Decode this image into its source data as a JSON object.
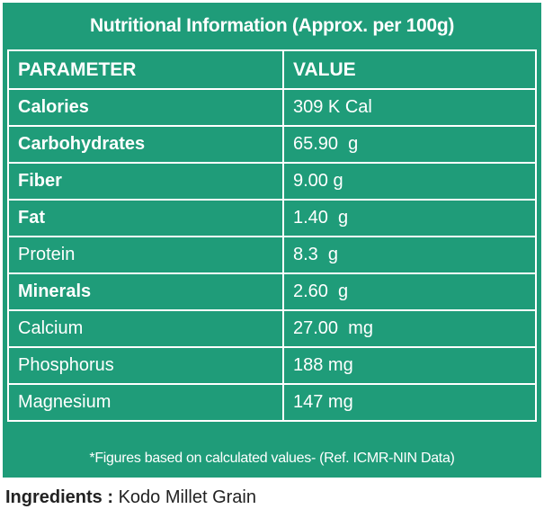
{
  "header": {
    "title": "Nutritional Information (Approx. per 100g)"
  },
  "table": {
    "columns": [
      "PARAMETER",
      "VALUE"
    ],
    "rows": [
      [
        "Calories",
        "309 K Cal"
      ],
      [
        "Carbohydrates",
        "65.90  g"
      ],
      [
        "Fiber",
        "9.00 g"
      ],
      [
        "Fat",
        "1.40  g"
      ],
      [
        "Protein",
        "8.3  g"
      ],
      [
        "Minerals",
        "2.60  g"
      ],
      [
        "Calcium",
        "27.00  mg"
      ],
      [
        "Phosphorus",
        "188 mg"
      ],
      [
        "Magnesium",
        "147 mg"
      ]
    ]
  },
  "footnote": "*Figures based on calculated values- (Ref. ICMR-NIN Data)",
  "ingredients": {
    "label": "Ingredients :",
    "value": "Kodo Millet Grain"
  }
}
